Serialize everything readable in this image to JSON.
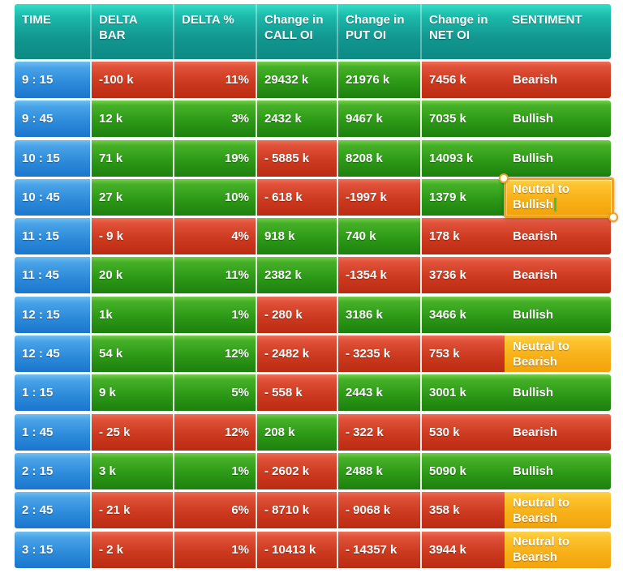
{
  "table": {
    "columns": [
      {
        "key": "time",
        "label": "TIME"
      },
      {
        "key": "delta_bar",
        "label": "DELTA\nBAR"
      },
      {
        "key": "delta_pct",
        "label": "DELTA %"
      },
      {
        "key": "call_oi",
        "label": "Change in\nCALL OI"
      },
      {
        "key": "put_oi",
        "label": "Change in\nPUT OI"
      },
      {
        "key": "net_oi",
        "label": "Change in\nNET OI"
      },
      {
        "key": "sentiment",
        "label": "SENTIMENT"
      }
    ],
    "rows": [
      {
        "cells": [
          {
            "v": "9 : 15",
            "c": "blue"
          },
          {
            "v": "-100 k",
            "c": "red"
          },
          {
            "v": "11%",
            "c": "red"
          },
          {
            "v": "29432 k",
            "c": "green"
          },
          {
            "v": "21976 k",
            "c": "green"
          },
          {
            "v": "7456 k",
            "c": "red"
          },
          {
            "v": "Bearish",
            "c": "red"
          }
        ]
      },
      {
        "cells": [
          {
            "v": "9 : 45",
            "c": "blue"
          },
          {
            "v": "12 k",
            "c": "green"
          },
          {
            "v": "3%",
            "c": "green"
          },
          {
            "v": "2432 k",
            "c": "green"
          },
          {
            "v": "9467 k",
            "c": "green"
          },
          {
            "v": "7035 k",
            "c": "green"
          },
          {
            "v": "Bullish",
            "c": "green"
          }
        ]
      },
      {
        "cells": [
          {
            "v": "10 : 15",
            "c": "blue"
          },
          {
            "v": "71 k",
            "c": "green"
          },
          {
            "v": "19%",
            "c": "green"
          },
          {
            "v": "- 5885 k",
            "c": "red"
          },
          {
            "v": "8208 k",
            "c": "green"
          },
          {
            "v": "14093 k",
            "c": "green"
          },
          {
            "v": "Bullish",
            "c": "green"
          }
        ]
      },
      {
        "cells": [
          {
            "v": "10 : 45",
            "c": "blue"
          },
          {
            "v": "27 k",
            "c": "green"
          },
          {
            "v": "10%",
            "c": "green"
          },
          {
            "v": "- 618 k",
            "c": "red"
          },
          {
            "v": "-1997 k",
            "c": "red"
          },
          {
            "v": "1379 k",
            "c": "green"
          },
          {
            "v": "Neutral to Bullish",
            "c": "orange",
            "selected": true
          }
        ]
      },
      {
        "cells": [
          {
            "v": "11 : 15",
            "c": "blue"
          },
          {
            "v": "- 9 k",
            "c": "red"
          },
          {
            "v": "4%",
            "c": "red"
          },
          {
            "v": "918 k",
            "c": "green"
          },
          {
            "v": "740 k",
            "c": "green"
          },
          {
            "v": "178 k",
            "c": "red"
          },
          {
            "v": "Bearish",
            "c": "red"
          }
        ]
      },
      {
        "cells": [
          {
            "v": "11 : 45",
            "c": "blue"
          },
          {
            "v": "20 k",
            "c": "green"
          },
          {
            "v": "11%",
            "c": "green"
          },
          {
            "v": "2382 k",
            "c": "green"
          },
          {
            "v": "-1354 k",
            "c": "red"
          },
          {
            "v": "3736 k",
            "c": "red"
          },
          {
            "v": "Bearish",
            "c": "red"
          }
        ]
      },
      {
        "cells": [
          {
            "v": "12 : 15",
            "c": "blue"
          },
          {
            "v": "1k",
            "c": "green"
          },
          {
            "v": "1%",
            "c": "green"
          },
          {
            "v": "- 280 k",
            "c": "red"
          },
          {
            "v": "3186 k",
            "c": "green"
          },
          {
            "v": "3466 k",
            "c": "green"
          },
          {
            "v": "Bullish",
            "c": "green"
          }
        ]
      },
      {
        "cells": [
          {
            "v": "12 : 45",
            "c": "blue"
          },
          {
            "v": "54 k",
            "c": "green"
          },
          {
            "v": "12%",
            "c": "green"
          },
          {
            "v": "- 2482 k",
            "c": "red"
          },
          {
            "v": "- 3235 k",
            "c": "red"
          },
          {
            "v": "753 k",
            "c": "red"
          },
          {
            "v": "Neutral to Bearish",
            "c": "orange"
          }
        ]
      },
      {
        "cells": [
          {
            "v": "1 : 15",
            "c": "blue"
          },
          {
            "v": "9 k",
            "c": "green"
          },
          {
            "v": "5%",
            "c": "green"
          },
          {
            "v": "- 558 k",
            "c": "red"
          },
          {
            "v": "2443 k",
            "c": "green"
          },
          {
            "v": "3001 k",
            "c": "green"
          },
          {
            "v": "Bullish",
            "c": "green"
          }
        ]
      },
      {
        "cells": [
          {
            "v": "1 : 45",
            "c": "blue"
          },
          {
            "v": "- 25 k",
            "c": "red"
          },
          {
            "v": "12%",
            "c": "red"
          },
          {
            "v": "208 k",
            "c": "green"
          },
          {
            "v": "- 322 k",
            "c": "red"
          },
          {
            "v": "530 k",
            "c": "red"
          },
          {
            "v": "Bearish",
            "c": "red"
          }
        ]
      },
      {
        "cells": [
          {
            "v": "2 : 15",
            "c": "blue"
          },
          {
            "v": "3 k",
            "c": "green"
          },
          {
            "v": "1%",
            "c": "green"
          },
          {
            "v": "- 2602 k",
            "c": "red"
          },
          {
            "v": "2488 k",
            "c": "green"
          },
          {
            "v": "5090 k",
            "c": "green"
          },
          {
            "v": "Bullish",
            "c": "green"
          }
        ]
      },
      {
        "cells": [
          {
            "v": "2 : 45",
            "c": "blue"
          },
          {
            "v": "- 21 k",
            "c": "red"
          },
          {
            "v": "6%",
            "c": "red"
          },
          {
            "v": "- 8710 k",
            "c": "red"
          },
          {
            "v": "- 9068 k",
            "c": "red"
          },
          {
            "v": "358 k",
            "c": "red"
          },
          {
            "v": "Neutral to Bearish",
            "c": "orange"
          }
        ]
      },
      {
        "cells": [
          {
            "v": "3 : 15",
            "c": "blue"
          },
          {
            "v": "- 2 k",
            "c": "red"
          },
          {
            "v": "1%",
            "c": "red"
          },
          {
            "v": "- 10413 k",
            "c": "red"
          },
          {
            "v": "- 14357 k",
            "c": "red"
          },
          {
            "v": "3944 k",
            "c": "red"
          },
          {
            "v": "Neutral to Bearish",
            "c": "orange"
          }
        ]
      }
    ]
  },
  "selection": {
    "row_time": "10 : 45",
    "column": "SENTIMENT",
    "editing_text": "Neutral to Bullish"
  },
  "colors": {
    "header_teal_top": "#35dfc7",
    "header_teal_bottom": "#0d8a84",
    "time_blue_top": "#6fc0f2",
    "time_blue_bottom": "#1b76cd",
    "bullish_green_top": "#74cf49",
    "bullish_green_bottom": "#1d800e",
    "bearish_red_top": "#ef7057",
    "bearish_red_bottom": "#ba2c12",
    "neutral_orange_top": "#fdd44e",
    "neutral_orange_bottom": "#f2a30c",
    "selection_border": "#eda227",
    "text_cursor_green": "#38c63e",
    "cell_text": "#ffffff"
  }
}
